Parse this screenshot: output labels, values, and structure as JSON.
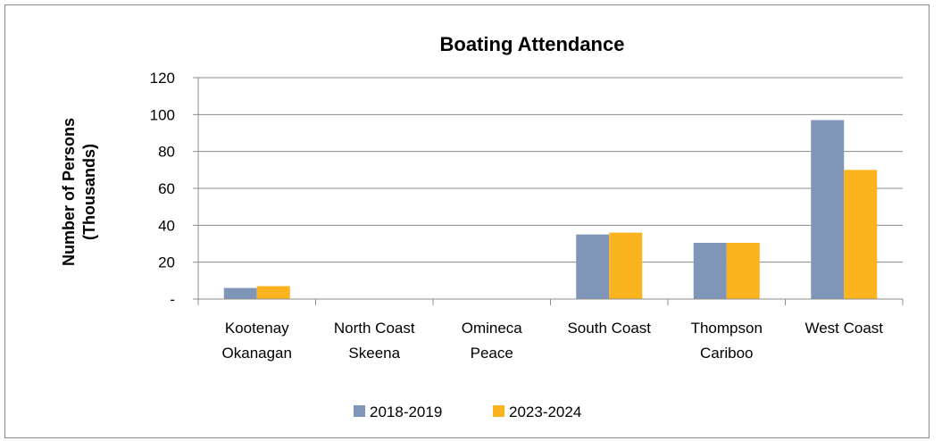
{
  "chart_data": {
    "type": "bar",
    "title": "Boating Attendance",
    "ylabel_lines": [
      "Number of Persons",
      "(Thousands)"
    ],
    "xlabel": "",
    "categories": [
      [
        "Kootenay",
        "Okanagan"
      ],
      [
        "North Coast",
        "Skeena"
      ],
      [
        "Omineca",
        "Peace"
      ],
      [
        "South Coast"
      ],
      [
        "Thompson",
        "Cariboo"
      ],
      [
        "West Coast"
      ]
    ],
    "series": [
      {
        "name": "2018-2019",
        "color": "#8096b8",
        "values": [
          6,
          0,
          0,
          35,
          30.5,
          97
        ]
      },
      {
        "name": "2023-2024",
        "color": "#fbb41d",
        "values": [
          7,
          0,
          0,
          36,
          30.5,
          70
        ]
      }
    ],
    "ylim": [
      0,
      120
    ],
    "yticks": [
      0,
      20,
      40,
      60,
      80,
      100,
      120
    ],
    "ytick_labels": [
      "-",
      "20",
      "40",
      "60",
      "80",
      "100",
      "120"
    ],
    "grid": true,
    "legend_position": "bottom"
  }
}
